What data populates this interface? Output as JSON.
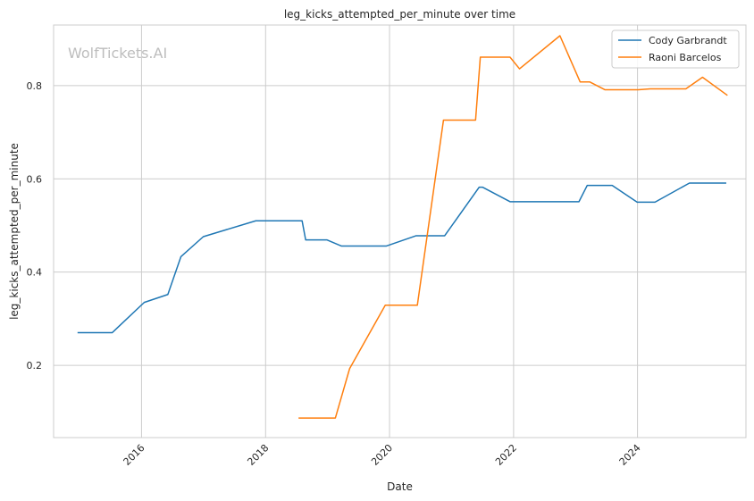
{
  "chart_data": {
    "type": "line",
    "title": "leg_kicks_attempted_per_minute over time",
    "xlabel": "Date",
    "ylabel": "leg_kicks_attempted_per_minute",
    "watermark": "WolfTickets.AI",
    "xlim": [
      "2014-08-01",
      "2025-10-01"
    ],
    "ylim": [
      0.045,
      0.93
    ],
    "x_ticks": [
      {
        "date": "2016-01-01",
        "label": "2016"
      },
      {
        "date": "2018-01-01",
        "label": "2018"
      },
      {
        "date": "2020-01-01",
        "label": "2020"
      },
      {
        "date": "2022-01-01",
        "label": "2022"
      },
      {
        "date": "2024-01-01",
        "label": "2024"
      }
    ],
    "y_ticks": [
      {
        "value": 0.2,
        "label": "0.2"
      },
      {
        "value": 0.4,
        "label": "0.4"
      },
      {
        "value": 0.6,
        "label": "0.6"
      },
      {
        "value": 0.8,
        "label": "0.8"
      }
    ],
    "grid": true,
    "legend_position": "top-right",
    "series": [
      {
        "name": "Cody Garbrandt",
        "color": "#1f77b4",
        "points": [
          {
            "x": "2014-12-20",
            "y": 0.27
          },
          {
            "x": "2015-07-12",
            "y": 0.27
          },
          {
            "x": "2016-01-17",
            "y": 0.335
          },
          {
            "x": "2016-06-04",
            "y": 0.352
          },
          {
            "x": "2016-08-20",
            "y": 0.433
          },
          {
            "x": "2016-12-30",
            "y": 0.476
          },
          {
            "x": "2017-11-04",
            "y": 0.51
          },
          {
            "x": "2018-08-04",
            "y": 0.51
          },
          {
            "x": "2018-08-25",
            "y": 0.469
          },
          {
            "x": "2018-12-29",
            "y": 0.469
          },
          {
            "x": "2019-03-23",
            "y": 0.456
          },
          {
            "x": "2019-12-14",
            "y": 0.456
          },
          {
            "x": "2020-06-06",
            "y": 0.478
          },
          {
            "x": "2020-11-21",
            "y": 0.478
          },
          {
            "x": "2021-06-12",
            "y": 0.582
          },
          {
            "x": "2021-07-03",
            "y": 0.582
          },
          {
            "x": "2021-12-11",
            "y": 0.551
          },
          {
            "x": "2023-01-21",
            "y": 0.551
          },
          {
            "x": "2023-03-11",
            "y": 0.586
          },
          {
            "x": "2023-08-05",
            "y": 0.586
          },
          {
            "x": "2023-12-30",
            "y": 0.55
          },
          {
            "x": "2024-04-13",
            "y": 0.55
          },
          {
            "x": "2024-11-02",
            "y": 0.591
          },
          {
            "x": "2025-06-07",
            "y": 0.591
          }
        ]
      },
      {
        "name": "Raoni Barcelos",
        "color": "#ff7f0e",
        "points": [
          {
            "x": "2018-07-14",
            "y": 0.087
          },
          {
            "x": "2019-02-16",
            "y": 0.087
          },
          {
            "x": "2019-05-11",
            "y": 0.193
          },
          {
            "x": "2019-12-07",
            "y": 0.329
          },
          {
            "x": "2020-06-13",
            "y": 0.329
          },
          {
            "x": "2020-11-14",
            "y": 0.726
          },
          {
            "x": "2021-05-22",
            "y": 0.726
          },
          {
            "x": "2021-06-19",
            "y": 0.861
          },
          {
            "x": "2021-12-11",
            "y": 0.861
          },
          {
            "x": "2022-02-05",
            "y": 0.836
          },
          {
            "x": "2022-10-01",
            "y": 0.907
          },
          {
            "x": "2023-01-28",
            "y": 0.808
          },
          {
            "x": "2023-03-25",
            "y": 0.808
          },
          {
            "x": "2023-06-24",
            "y": 0.791
          },
          {
            "x": "2024-01-06",
            "y": 0.791
          },
          {
            "x": "2024-03-16",
            "y": 0.793
          },
          {
            "x": "2024-10-12",
            "y": 0.793
          },
          {
            "x": "2025-01-18",
            "y": 0.818
          },
          {
            "x": "2025-06-14",
            "y": 0.779
          }
        ]
      }
    ]
  }
}
